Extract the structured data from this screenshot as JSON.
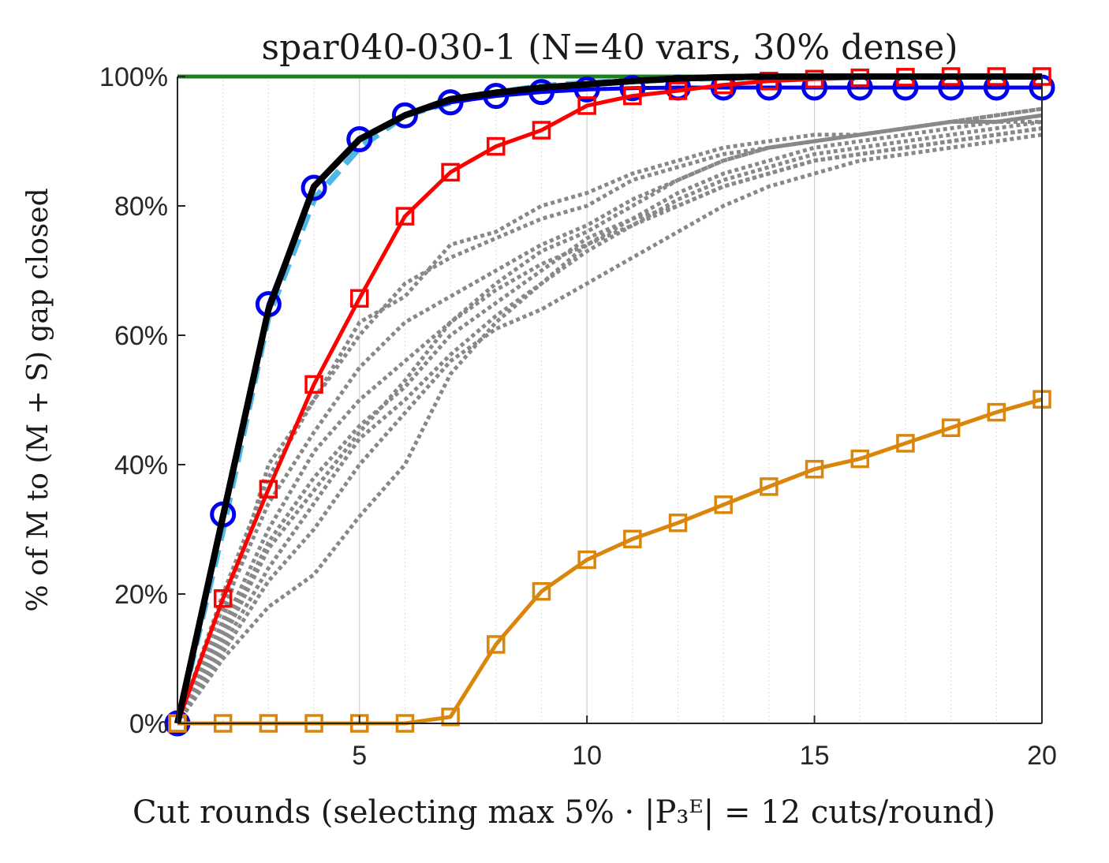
{
  "chart_data": {
    "type": "line",
    "title": "spar040-030-1 (N=40 vars, 30% dense)",
    "xlabel": "Cut rounds (selecting max 5% · |P₃ᴱ| = 12 cuts/round)",
    "ylabel": "% of M to (M + S) gap closed",
    "xlim": [
      1,
      20
    ],
    "ylim": [
      0,
      100
    ],
    "x_ticks": [
      5,
      10,
      15,
      20
    ],
    "y_ticks": [
      0,
      20,
      40,
      60,
      80,
      100
    ],
    "y_tick_labels": [
      "0%",
      "20%",
      "40%",
      "60%",
      "80%",
      "100%"
    ],
    "grid": "vertical dotted gridlines at every round",
    "legend": "none",
    "x": [
      1,
      2,
      3,
      4,
      5,
      6,
      7,
      8,
      9,
      10,
      11,
      12,
      13,
      14,
      15,
      16,
      17,
      18,
      19,
      20
    ],
    "series": [
      {
        "color": "#1f7f1f",
        "style": "solid",
        "marker": "none",
        "values": [
          100,
          100,
          100,
          100,
          100,
          100,
          100,
          100,
          100,
          100,
          100,
          100,
          100,
          100,
          100,
          100,
          100,
          100,
          100,
          100
        ]
      },
      {
        "color": "#888888",
        "style": "dotted",
        "marker": "none",
        "values": [
          0,
          18,
          34,
          45,
          55,
          62,
          66,
          70,
          74,
          77,
          81,
          84,
          87,
          89,
          90,
          91,
          92,
          93,
          94,
          95
        ]
      },
      {
        "color": "#888888",
        "style": "dotted",
        "marker": "none",
        "values": [
          0,
          15,
          30,
          42,
          50,
          56,
          62,
          68,
          73,
          76,
          80,
          84,
          87,
          89,
          90,
          91,
          92,
          93,
          93,
          94
        ]
      },
      {
        "color": "#888888",
        "style": "dotted",
        "marker": "none",
        "values": [
          0,
          12,
          24,
          34,
          44,
          50,
          57,
          63,
          68,
          73,
          77,
          81,
          84,
          86,
          88,
          89,
          90,
          91,
          92,
          93
        ]
      },
      {
        "color": "#888888",
        "style": "dotted",
        "marker": "none",
        "values": [
          0,
          10,
          18,
          23,
          32,
          40,
          54,
          62,
          68,
          74,
          78,
          82,
          85,
          87,
          89,
          90,
          91,
          92,
          93,
          93
        ]
      },
      {
        "color": "#888888",
        "style": "dotted",
        "marker": "none",
        "values": [
          0,
          16,
          40,
          50,
          62,
          66,
          74,
          76,
          80,
          82,
          85,
          87,
          89,
          90,
          91,
          91,
          92,
          93,
          94,
          95
        ]
      },
      {
        "color": "#888888",
        "style": "dotted",
        "marker": "none",
        "values": [
          0,
          20,
          38,
          50,
          60,
          68,
          72,
          75,
          78,
          80,
          84,
          86,
          88,
          89,
          90,
          91,
          92,
          93,
          93,
          94
        ]
      },
      {
        "color": "#888888",
        "style": "dotted",
        "marker": "none",
        "values": [
          0,
          14,
          28,
          38,
          46,
          52,
          60,
          65,
          70,
          75,
          78,
          80,
          83,
          85,
          87,
          88,
          89,
          90,
          91,
          92
        ]
      },
      {
        "color": "#888888",
        "style": "dotted",
        "marker": "none",
        "values": [
          0,
          11,
          22,
          30,
          40,
          48,
          56,
          61,
          64,
          68,
          72,
          76,
          80,
          83,
          85,
          87,
          88,
          89,
          90,
          91
        ]
      },
      {
        "color": "#888888",
        "style": "dotted",
        "marker": "none",
        "values": [
          0,
          13,
          27,
          36,
          45,
          53,
          62,
          67,
          71,
          74,
          77,
          80,
          83,
          85,
          87,
          88,
          89,
          90,
          91,
          92
        ]
      },
      {
        "color": "#4db8e8",
        "style": "dashed",
        "marker": "none",
        "values": [
          0,
          30,
          63,
          81,
          89,
          94,
          96,
          97.5,
          98.5,
          99,
          99.3,
          99.6,
          99.8,
          99.9,
          100,
          100,
          100,
          100,
          100,
          100
        ]
      },
      {
        "color": "#0000ee",
        "style": "solid",
        "marker": "circle",
        "values": [
          0,
          32.3,
          64.8,
          82.8,
          90.3,
          94,
          96,
          97,
          97.6,
          98,
          98.2,
          98.3,
          98.3,
          98.3,
          98.3,
          98.3,
          98.3,
          98.3,
          98.3,
          98.3
        ]
      },
      {
        "color": "#ff0000",
        "style": "solid",
        "marker": "square",
        "values": [
          0,
          19.3,
          36.2,
          52.4,
          65.7,
          78.4,
          85.2,
          89.2,
          91.7,
          95.5,
          97,
          97.8,
          98.7,
          99.3,
          99.6,
          99.8,
          99.9,
          100,
          100,
          100
        ]
      },
      {
        "color": "#000000",
        "style": "solid",
        "marker": "none",
        "values": [
          0,
          32,
          64,
          83,
          90.3,
          94,
          96.5,
          97.5,
          98.3,
          98.8,
          99.3,
          99.7,
          99.9,
          100,
          100,
          100,
          100,
          100,
          100,
          100
        ]
      },
      {
        "color": "#d9860b",
        "style": "solid",
        "marker": "square",
        "values": [
          0,
          0,
          0,
          0,
          0,
          0,
          1,
          12.2,
          20.4,
          25.3,
          28.5,
          31,
          33.8,
          36.6,
          39.3,
          40.9,
          43.3,
          45.7,
          48.1,
          50.1
        ]
      }
    ]
  }
}
